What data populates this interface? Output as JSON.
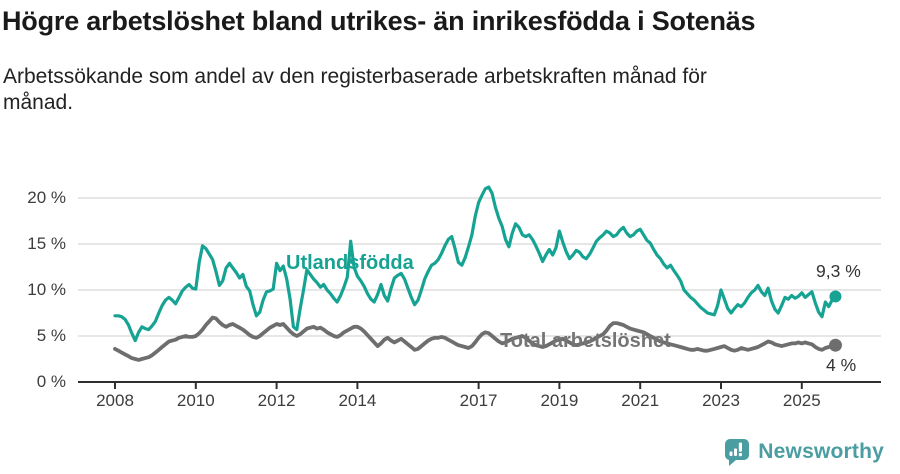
{
  "header": {
    "title": "Högre arbetslöshet bland utrikes- än inrikesfödda i Sotenäs",
    "subtitle_line1": "Arbetssökande som andel av den registerbaserade arbetskraften månad för",
    "subtitle_line2": "månad."
  },
  "chart_data": {
    "type": "line",
    "title": "Högre arbetslöshet bland utrikes- än inrikesfödda i Sotenäs",
    "subtitle": "Arbetssökande som andel av den registerbaserade arbetskraften månad för månad.",
    "x_unit": "month",
    "x_range": [
      "2008-01",
      "2025-11"
    ],
    "ylim": [
      0,
      22
    ],
    "grid": "horizontal",
    "legend": "inline-labels",
    "yticks": [
      "0 %",
      "5 %",
      "10 %",
      "15 %",
      "20 %"
    ],
    "ytick_values": [
      0,
      5,
      10,
      15,
      20
    ],
    "xticks": [
      "2008",
      "2010",
      "2012",
      "2014",
      "2017",
      "2019",
      "2021",
      "2023",
      "2025"
    ],
    "xtick_years": [
      2008,
      2010,
      2012,
      2014,
      2017,
      2019,
      2021,
      2023,
      2025
    ],
    "series": [
      {
        "name": "Utlandsfödda",
        "color": "#16a393",
        "end_label": "9,3 %",
        "end_value": 9.3,
        "values": [
          7.2,
          7.2,
          7.1,
          6.8,
          6.2,
          5.3,
          4.5,
          5.4,
          6.0,
          5.8,
          5.7,
          6.1,
          6.6,
          7.5,
          8.3,
          8.9,
          9.2,
          8.9,
          8.5,
          9.2,
          9.9,
          10.3,
          10.6,
          10.2,
          10.1,
          13.0,
          14.8,
          14.5,
          13.9,
          13.3,
          12.0,
          10.5,
          11.0,
          12.4,
          12.9,
          12.4,
          11.9,
          11.3,
          11.7,
          10.4,
          9.9,
          8.4,
          7.2,
          7.6,
          8.9,
          9.8,
          9.9,
          10.1,
          12.9,
          12.1,
          12.6,
          11.2,
          9.0,
          6.0,
          5.7,
          8.0,
          10.0,
          12.2,
          11.7,
          11.2,
          10.8,
          10.3,
          10.6,
          10.0,
          9.6,
          9.1,
          8.7,
          9.4,
          10.3,
          11.4,
          15.3,
          12.5,
          11.5,
          11.0,
          10.4,
          9.6,
          9.0,
          8.7,
          9.5,
          10.6,
          9.4,
          8.8,
          10.2,
          11.3,
          11.6,
          11.8,
          11.2,
          10.2,
          9.2,
          8.4,
          8.9,
          10.0,
          11.2,
          12.0,
          12.7,
          12.9,
          13.3,
          14.0,
          14.8,
          15.5,
          15.8,
          14.5,
          13.0,
          12.7,
          13.5,
          14.7,
          16.0,
          18.0,
          19.5,
          20.3,
          21.0,
          21.2,
          20.5,
          19.0,
          17.8,
          16.9,
          15.5,
          14.7,
          16.2,
          17.2,
          16.8,
          16.0,
          15.8,
          16.0,
          15.5,
          14.8,
          14.0,
          13.1,
          13.8,
          14.4,
          13.8,
          14.6,
          16.4,
          15.2,
          14.2,
          13.4,
          13.8,
          14.3,
          14.1,
          13.6,
          13.4,
          13.9,
          14.6,
          15.3,
          15.7,
          16.0,
          16.4,
          16.2,
          15.8,
          16.0,
          16.5,
          16.8,
          16.2,
          15.8,
          16.0,
          16.4,
          16.6,
          16.0,
          15.4,
          15.1,
          14.4,
          13.8,
          13.4,
          12.8,
          12.4,
          12.7,
          12.1,
          11.6,
          11.0,
          10.0,
          9.6,
          9.2,
          8.9,
          8.5,
          8.1,
          7.8,
          7.5,
          7.4,
          7.3,
          8.3,
          10.0,
          9.0,
          8.0,
          7.5,
          8.0,
          8.4,
          8.2,
          8.6,
          9.2,
          9.7,
          10.0,
          10.5,
          9.8,
          9.4,
          10.2,
          8.8,
          7.9,
          7.5,
          8.3,
          9.2,
          9.0,
          9.4,
          9.1,
          9.3,
          9.7,
          9.2,
          9.5,
          9.8,
          8.6,
          7.6,
          7.1,
          8.7,
          8.2,
          8.9,
          9.3
        ]
      },
      {
        "name": "Total arbetslöshet",
        "color": "#6e6e6e",
        "label_color": "#757575",
        "end_label": "4 %",
        "end_value": 4.0,
        "values": [
          3.6,
          3.4,
          3.2,
          3.0,
          2.8,
          2.6,
          2.5,
          2.4,
          2.5,
          2.6,
          2.7,
          2.9,
          3.2,
          3.5,
          3.8,
          4.1,
          4.4,
          4.5,
          4.6,
          4.8,
          4.9,
          5.0,
          4.9,
          4.9,
          5.0,
          5.3,
          5.7,
          6.2,
          6.6,
          7.0,
          6.9,
          6.5,
          6.2,
          6.0,
          6.2,
          6.3,
          6.1,
          5.9,
          5.7,
          5.4,
          5.1,
          4.9,
          4.8,
          5.0,
          5.3,
          5.6,
          5.9,
          6.1,
          6.3,
          6.2,
          6.3,
          5.9,
          5.5,
          5.2,
          5.0,
          5.2,
          5.5,
          5.8,
          5.9,
          6.0,
          5.8,
          5.9,
          5.7,
          5.4,
          5.2,
          5.0,
          4.9,
          5.1,
          5.4,
          5.6,
          5.8,
          6.0,
          6.0,
          5.8,
          5.5,
          5.1,
          4.7,
          4.3,
          3.9,
          4.2,
          4.6,
          4.8,
          4.5,
          4.3,
          4.5,
          4.7,
          4.4,
          4.1,
          3.8,
          3.5,
          3.6,
          3.9,
          4.2,
          4.5,
          4.7,
          4.8,
          4.8,
          4.9,
          4.8,
          4.6,
          4.4,
          4.2,
          4.0,
          3.9,
          3.8,
          3.7,
          3.9,
          4.3,
          4.8,
          5.2,
          5.4,
          5.3,
          5.0,
          4.7,
          4.4,
          4.2,
          4.3,
          4.5,
          4.7,
          4.8,
          4.9,
          5.0,
          4.8,
          4.5,
          4.2,
          4.0,
          3.9,
          3.8,
          3.9,
          4.1,
          4.3,
          4.5,
          4.6,
          4.7,
          4.5,
          4.3,
          4.1,
          4.0,
          4.1,
          4.2,
          4.3,
          4.4,
          4.6,
          4.8,
          5.0,
          5.2,
          5.6,
          6.1,
          6.4,
          6.4,
          6.3,
          6.2,
          6.0,
          5.8,
          5.7,
          5.6,
          5.5,
          5.4,
          5.2,
          5.0,
          4.8,
          4.6,
          4.4,
          4.3,
          4.2,
          4.1,
          4.0,
          3.9,
          3.8,
          3.7,
          3.6,
          3.5,
          3.5,
          3.6,
          3.5,
          3.4,
          3.4,
          3.5,
          3.6,
          3.7,
          3.8,
          3.9,
          3.7,
          3.5,
          3.4,
          3.5,
          3.7,
          3.6,
          3.5,
          3.6,
          3.7,
          3.8,
          4.0,
          4.2,
          4.4,
          4.3,
          4.1,
          4.0,
          3.9,
          4.0,
          4.1,
          4.2,
          4.2,
          4.3,
          4.2,
          4.3,
          4.2,
          4.1,
          3.8,
          3.6,
          3.5,
          3.7,
          3.8,
          3.9,
          4.0
        ]
      }
    ],
    "colors": {
      "axis": "#2f2f2f",
      "gridline": "#d8d8d8",
      "tick_label": "#3d3d3d",
      "value_label": "#333333"
    }
  },
  "branding": {
    "logo_text": "Newsworthy",
    "logo_color": "#4a9da0",
    "logo_icon": "newsworthy-speech-bubble-bar-chart-icon"
  }
}
